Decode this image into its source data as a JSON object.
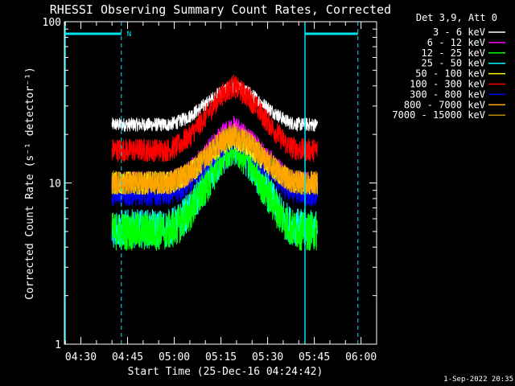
{
  "chart_data": {
    "type": "line",
    "title": "RHESSI Observing Summary Count Rates, Corrected",
    "xlabel": "Start Time (25-Dec-16 04:24:42)",
    "ylabel": "Corrected Count Rate (s⁻¹ detector⁻¹)",
    "yscale": "log",
    "ylim": [
      1,
      100
    ],
    "xlim": [
      "04:24:42",
      "06:05:00"
    ],
    "x_ticks": [
      "04:30",
      "04:45",
      "05:00",
      "05:15",
      "05:30",
      "05:45",
      "06:00"
    ],
    "y_ticks": [
      "1",
      "10",
      "100"
    ],
    "legend_header": "Det 3,9, Att 0",
    "legend_placement": "right",
    "timestamp": "1-Sep-2022 20:35",
    "night_marker": "N",
    "night_intervals": [
      [
        "04:24:42",
        "04:43:00"
      ],
      [
        "05:42:00",
        "05:59:00"
      ]
    ],
    "night_markers": [
      "04:43:00",
      "05:42:00",
      "05:59:00"
    ],
    "data_start": "04:40:00",
    "data_end": "05:46:00",
    "profile": {
      "times": [
        "04:40",
        "04:58",
        "05:01",
        "05:05",
        "05:10",
        "05:15",
        "05:19",
        "05:24",
        "05:29",
        "05:34",
        "05:37",
        "05:41",
        "05:46"
      ],
      "shape": [
        0,
        0,
        0.06,
        0.22,
        0.52,
        0.85,
        1.0,
        0.82,
        0.5,
        0.2,
        0.05,
        0,
        0
      ]
    },
    "series": [
      {
        "name": "3 - 6 keV",
        "color": "#ffffff",
        "base": 23,
        "peak": 40
      },
      {
        "name": "6 - 12 keV",
        "color": "#ff00ff",
        "base": 10,
        "peak": 22
      },
      {
        "name": "12 - 25 keV",
        "color": "#00ff00",
        "base": 5.0,
        "peak": 17
      },
      {
        "name": "25 - 50 keV",
        "color": "#00ffff",
        "base": 5.2,
        "peak": 17
      },
      {
        "name": "50 - 100 keV",
        "color": "#ffff00",
        "base": 10,
        "peak": 19
      },
      {
        "name": "100 - 300 keV",
        "color": "#ff0000",
        "base": 16,
        "peak": 40
      },
      {
        "name": "300 - 800 keV",
        "color": "#0000ff",
        "base": 8.5,
        "peak": 19
      },
      {
        "name": "800 - 7000 keV",
        "color": "#ffa500",
        "base": 10,
        "peak": 20
      },
      {
        "name": "7000 - 15000 keV",
        "color": "#b08c00",
        "base": 10,
        "peak": 20
      }
    ]
  }
}
